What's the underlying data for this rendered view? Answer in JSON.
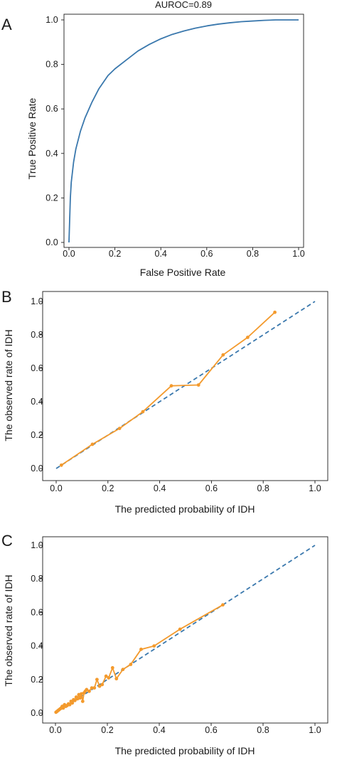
{
  "figure": {
    "panels": [
      "A",
      "B",
      "C"
    ]
  },
  "chart_data": [
    {
      "type": "line",
      "panel": "A",
      "title": "AUROC=0.89",
      "xlabel": "False Positive Rate",
      "ylabel": "True Positive Rate",
      "xlim": [
        0,
        1
      ],
      "ylim": [
        0,
        1
      ],
      "xticks": [
        "0.0",
        "0.2",
        "0.4",
        "0.6",
        "0.8",
        "1.0"
      ],
      "yticks": [
        "0.0",
        "0.2",
        "0.4",
        "0.6",
        "0.8",
        "1.0"
      ],
      "grid": false,
      "series": [
        {
          "color": "#3a78ad",
          "x": [
            0,
            0.003,
            0.006,
            0.01,
            0.02,
            0.03,
            0.05,
            0.07,
            0.1,
            0.13,
            0.17,
            0.2,
            0.25,
            0.3,
            0.35,
            0.4,
            0.45,
            0.5,
            0.55,
            0.6,
            0.65,
            0.7,
            0.75,
            0.8,
            0.85,
            0.9,
            0.95,
            1.0
          ],
          "y": [
            0,
            0.1,
            0.2,
            0.27,
            0.36,
            0.42,
            0.5,
            0.56,
            0.63,
            0.69,
            0.75,
            0.78,
            0.82,
            0.86,
            0.89,
            0.915,
            0.935,
            0.95,
            0.963,
            0.973,
            0.981,
            0.987,
            0.992,
            0.995,
            0.998,
            1.0,
            1.0,
            1.0
          ]
        }
      ]
    },
    {
      "type": "line",
      "panel": "B",
      "title": "",
      "xlabel": "The predicted probability of IDH",
      "ylabel": "The observed rate of IDH",
      "xlim": [
        0,
        1
      ],
      "ylim": [
        0,
        1
      ],
      "xticks": [
        "0.0",
        "0.2",
        "0.4",
        "0.6",
        "0.8",
        "1.0"
      ],
      "yticks": [
        "0.0",
        "0.2",
        "0.4",
        "0.6",
        "0.8",
        "1.0"
      ],
      "grid": false,
      "series": [
        {
          "style": "dashed",
          "color": "#3a78ad",
          "x": [
            0,
            1
          ],
          "y": [
            0,
            1
          ]
        },
        {
          "style": "line-markers",
          "color": "#f39a2d",
          "x": [
            0.02,
            0.14,
            0.245,
            0.335,
            0.445,
            0.55,
            0.645,
            0.74,
            0.845
          ],
          "y": [
            0.02,
            0.145,
            0.24,
            0.34,
            0.495,
            0.5,
            0.68,
            0.785,
            0.935
          ]
        }
      ]
    },
    {
      "type": "line",
      "panel": "C",
      "title": "",
      "xlabel": "The predicted probability of IDH",
      "ylabel": "The observed rate of IDH",
      "xlim": [
        0,
        1
      ],
      "ylim": [
        0,
        1
      ],
      "xticks": [
        "0.0",
        "0.2",
        "0.4",
        "0.6",
        "0.8",
        "1.0"
      ],
      "yticks": [
        "0.0",
        "0.2",
        "0.4",
        "0.6",
        "0.8",
        "1.0"
      ],
      "grid": false,
      "series": [
        {
          "style": "dashed",
          "color": "#3a78ad",
          "x": [
            0,
            1
          ],
          "y": [
            0,
            1
          ]
        },
        {
          "style": "line-markers",
          "color": "#f39a2d",
          "x": [
            0.002,
            0.006,
            0.01,
            0.014,
            0.018,
            0.022,
            0.026,
            0.03,
            0.035,
            0.04,
            0.045,
            0.05,
            0.055,
            0.06,
            0.065,
            0.07,
            0.075,
            0.08,
            0.085,
            0.09,
            0.095,
            0.1,
            0.105,
            0.11,
            0.115,
            0.12,
            0.13,
            0.14,
            0.15,
            0.16,
            0.17,
            0.18,
            0.195,
            0.205,
            0.22,
            0.235,
            0.26,
            0.29,
            0.33,
            0.38,
            0.48,
            0.645
          ],
          "y": [
            0.005,
            0.01,
            0.015,
            0.02,
            0.025,
            0.03,
            0.04,
            0.03,
            0.05,
            0.04,
            0.045,
            0.055,
            0.05,
            0.07,
            0.06,
            0.08,
            0.075,
            0.095,
            0.085,
            0.11,
            0.09,
            0.115,
            0.07,
            0.12,
            0.13,
            0.14,
            0.13,
            0.15,
            0.15,
            0.2,
            0.16,
            0.17,
            0.22,
            0.21,
            0.27,
            0.205,
            0.26,
            0.29,
            0.38,
            0.4,
            0.5,
            0.645
          ]
        }
      ]
    }
  ]
}
